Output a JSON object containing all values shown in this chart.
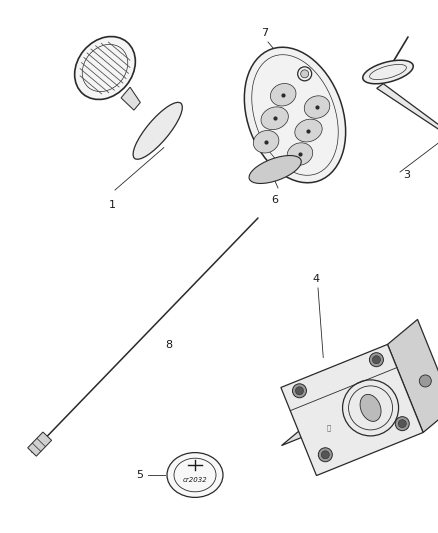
{
  "bg_color": "#ffffff",
  "fig_width": 4.38,
  "fig_height": 5.33,
  "dpi": 100,
  "line_color": "#2a2a2a",
  "text_color": "#1a1a1a",
  "light_gray": "#d8d8d8",
  "mid_gray": "#b0b0b0",
  "dark_gray": "#555555"
}
